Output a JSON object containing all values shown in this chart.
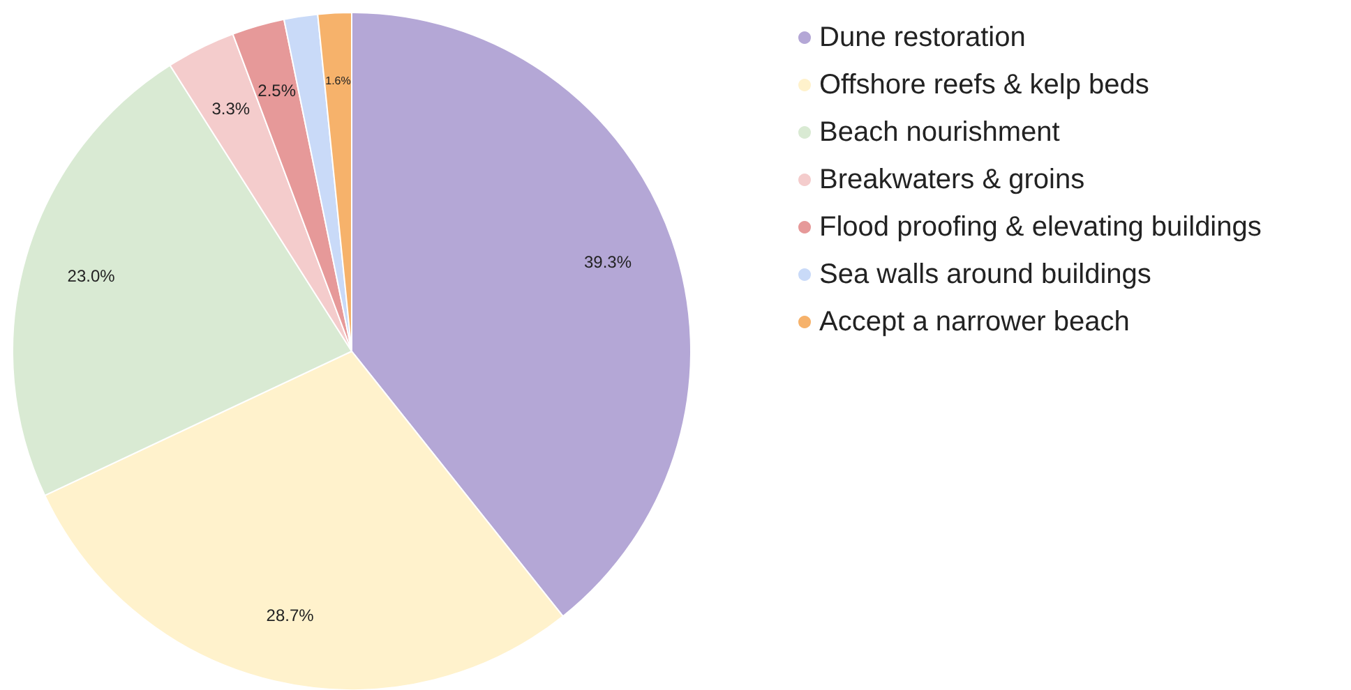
{
  "chart_data": {
    "type": "pie",
    "categories": [
      "Dune restoration",
      "Offshore reefs & kelp beds",
      "Beach nourishment",
      "Breakwaters & groins",
      "Flood proofing & elevating buildings",
      "Sea walls around buildings",
      "Accept a narrower beach"
    ],
    "values": [
      39.3,
      28.7,
      23.0,
      3.3,
      2.5,
      1.6,
      1.6
    ],
    "value_labels": [
      "39.3%",
      "28.7%",
      "23.0%",
      "3.3%",
      "2.5%",
      null,
      "1.6%"
    ],
    "colors": [
      "#b4a7d6",
      "#fff2cc",
      "#d9ead3",
      "#f4cccc",
      "#e69999",
      "#c9daf8",
      "#f6b26b"
    ],
    "legend": "top right"
  }
}
